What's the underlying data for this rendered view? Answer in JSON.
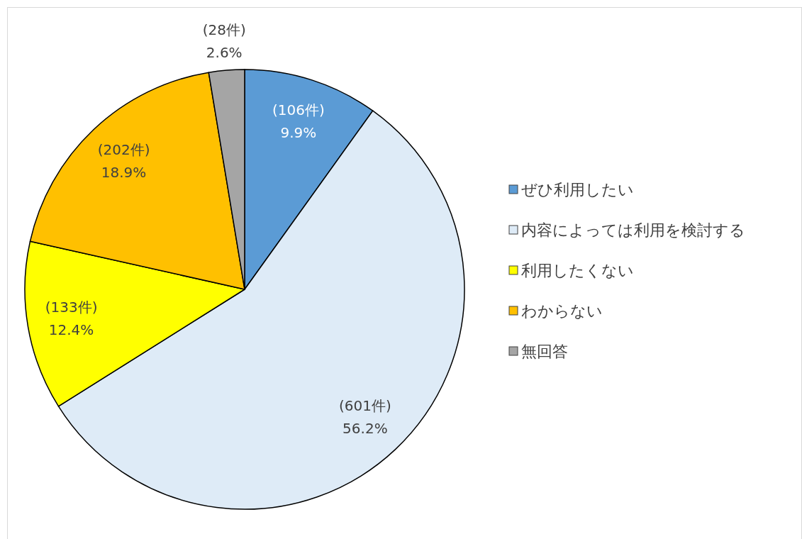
{
  "chart_data": {
    "type": "pie",
    "categories": [
      "ぜひ利用したい",
      "内容によっては利用を検討する",
      "利用したくない",
      "わからない",
      "無回答"
    ],
    "values": [
      106,
      601,
      133,
      202,
      28
    ],
    "value_labels": [
      "(106件)\n9.9%",
      "(601件)\n56.2%",
      "(133件)\n12.4%",
      "(202件)\n18.9%",
      "(28件)\n2.6%"
    ],
    "colors": [
      "#5b9bd5",
      "#deebf7",
      "#ffff00",
      "#ffc000",
      "#a5a5a5"
    ],
    "legend": "right"
  }
}
